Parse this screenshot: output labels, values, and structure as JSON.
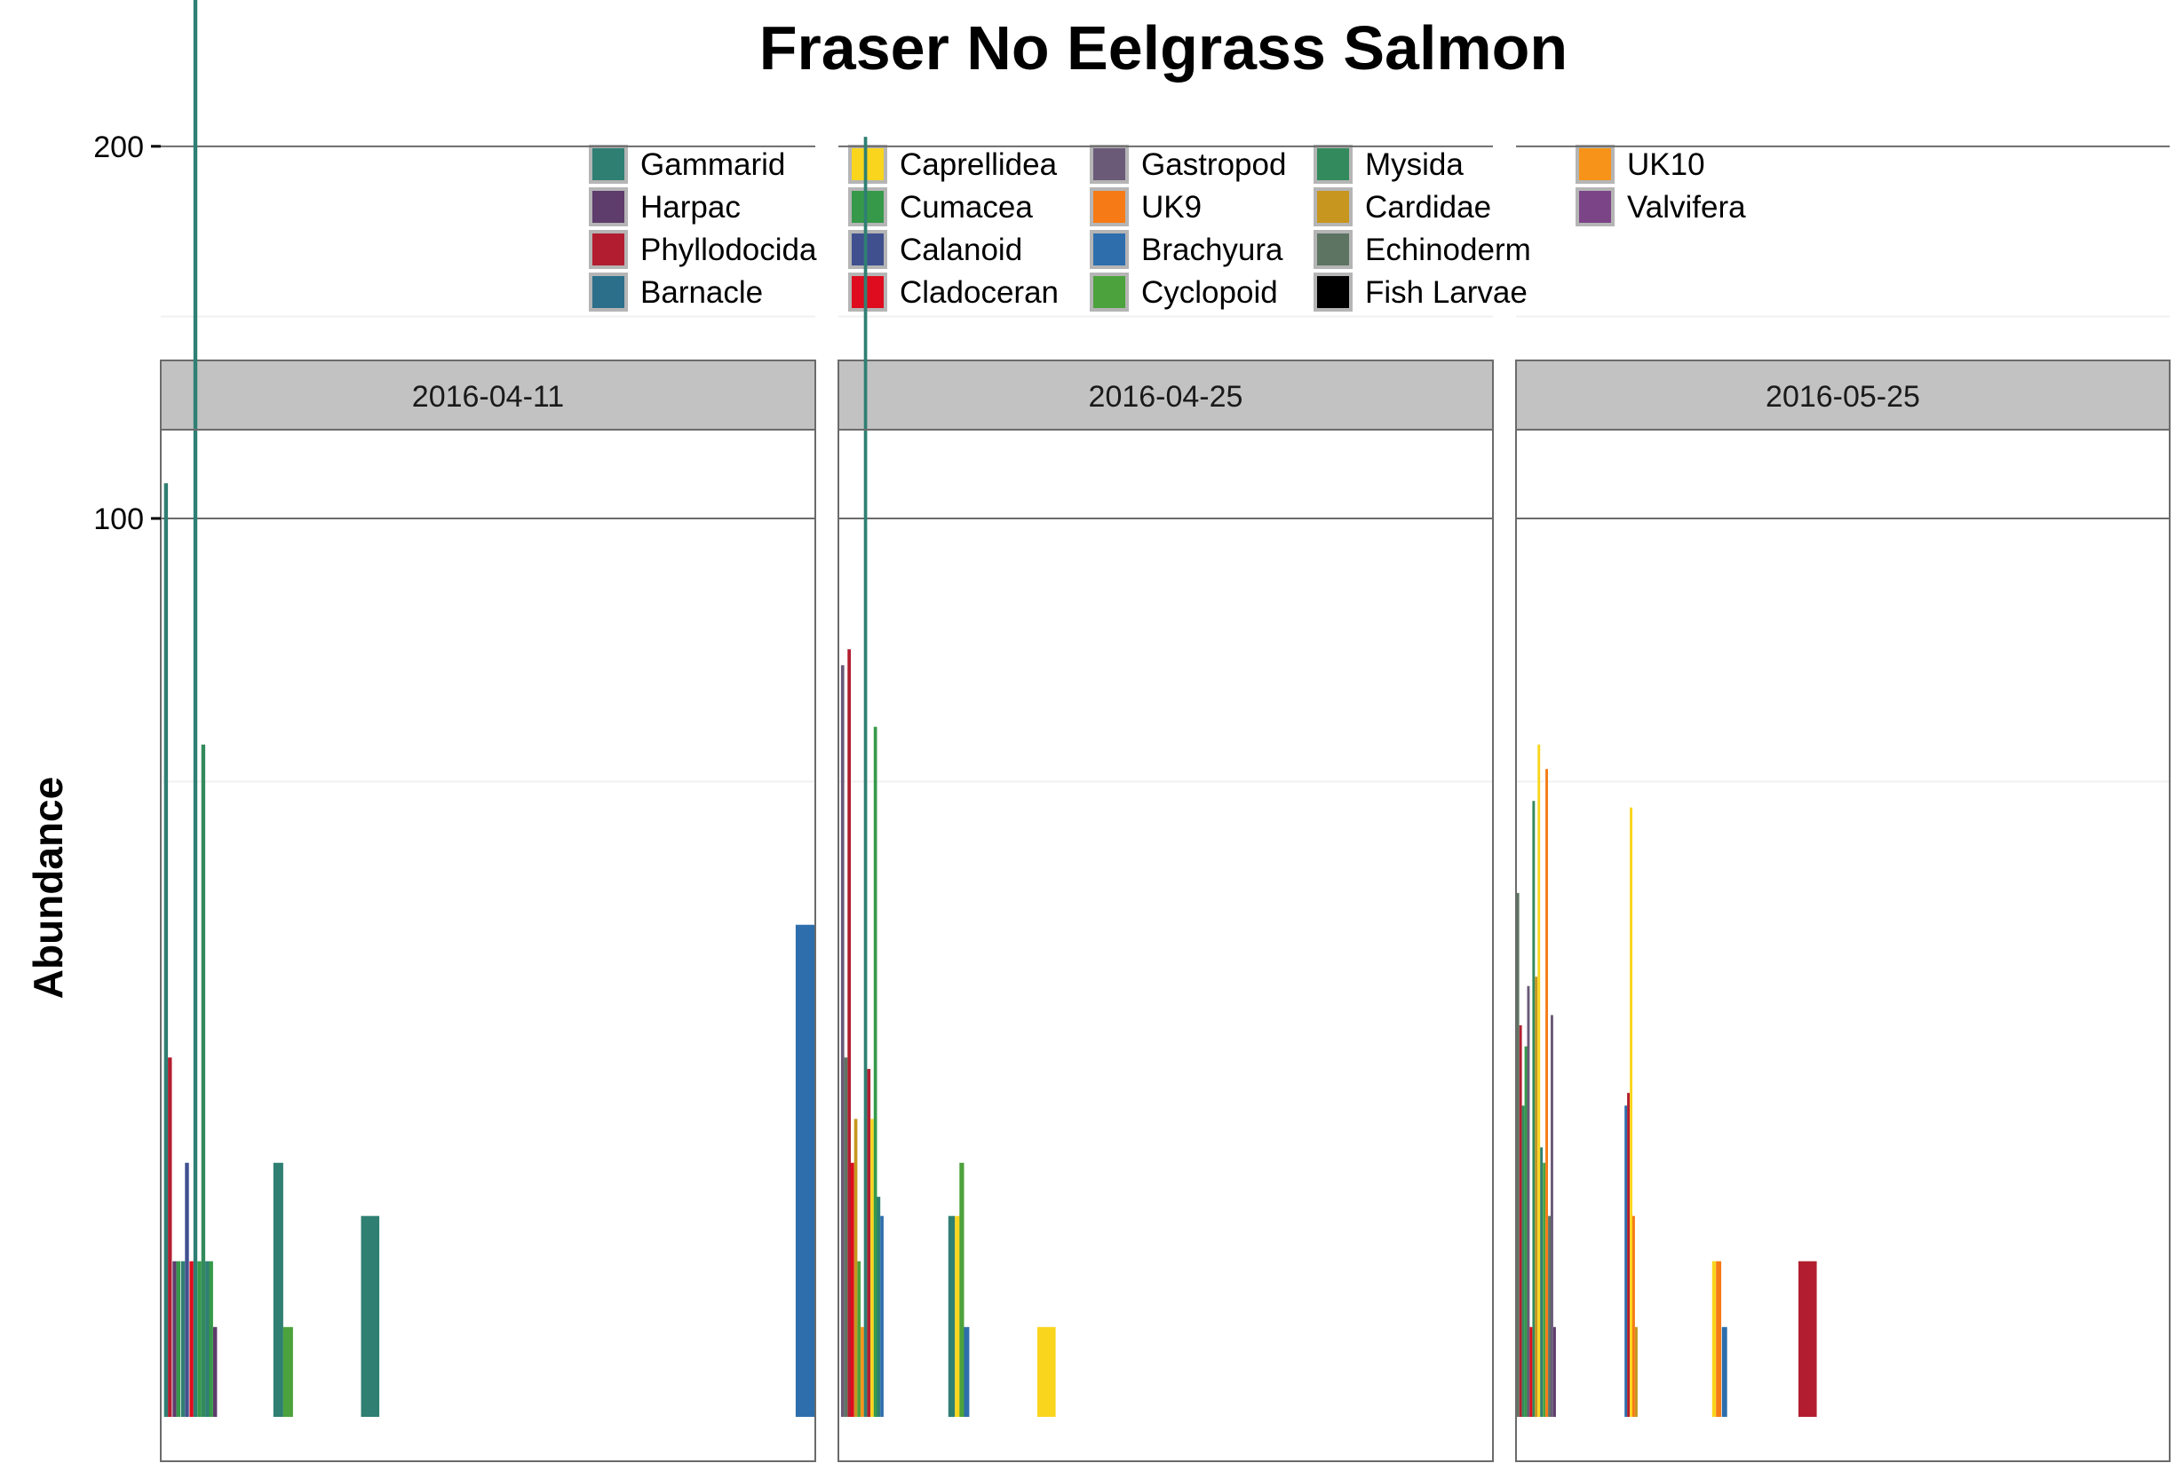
{
  "chart_data": {
    "type": "bar",
    "title": "Fraser No Eelgrass Salmon",
    "ylabel": "Abundance",
    "xlabel": "",
    "y_scale": "sqrt",
    "ylim": [
      0,
      300
    ],
    "yticks": [
      100,
      200,
      300
    ],
    "grid": true,
    "legend_position": "top",
    "legend": [
      {
        "name": "Gammarid",
        "color": "#2f7f73"
      },
      {
        "name": "Harpac",
        "color": "#5e3c6b"
      },
      {
        "name": "Phyllodocida",
        "color": "#b21e30"
      },
      {
        "name": "Barnacle",
        "color": "#2c6f8a"
      },
      {
        "name": "Caprellidea",
        "color": "#f9d51d"
      },
      {
        "name": "Cumacea",
        "color": "#36994a"
      },
      {
        "name": "Calanoid",
        "color": "#40508f"
      },
      {
        "name": "Cladoceran",
        "color": "#de0c1e"
      },
      {
        "name": "Gastropod",
        "color": "#6a5a78"
      },
      {
        "name": "UK9",
        "color": "#f67b16"
      },
      {
        "name": "Brachyura",
        "color": "#2e6ead"
      },
      {
        "name": "Cyclopoid",
        "color": "#4ca23c"
      },
      {
        "name": "Mysida",
        "color": "#338a5c"
      },
      {
        "name": "Cardidae",
        "color": "#c7961e"
      },
      {
        "name": "Echinoderm",
        "color": "#5d7463"
      },
      {
        "name": "Fish Larvae",
        "color": "#000000"
      },
      {
        "name": "UK10",
        "color": "#f79318"
      },
      {
        "name": "Valvifera",
        "color": "#7b4486"
      }
    ],
    "panels": [
      {
        "label": "2016-04-11",
        "x_max": 100,
        "bars": [
          {
            "x": 0.5,
            "w": 0.6,
            "taxon": "Gammarid",
            "value": 108
          },
          {
            "x": 1.1,
            "w": 0.6,
            "taxon": "Phyllodocida",
            "value": 16
          },
          {
            "x": 1.8,
            "w": 0.6,
            "taxon": "Harpac",
            "value": 3
          },
          {
            "x": 2.4,
            "w": 0.6,
            "taxon": "Cumacea",
            "value": 3
          },
          {
            "x": 3.1,
            "w": 0.6,
            "taxon": "Gammarid",
            "value": 3
          },
          {
            "x": 3.7,
            "w": 0.6,
            "taxon": "Calanoid",
            "value": 8
          },
          {
            "x": 4.4,
            "w": 0.6,
            "taxon": "Cladoceran",
            "value": 3
          },
          {
            "x": 5.0,
            "w": 0.6,
            "taxon": "Gammarid",
            "value": 283
          },
          {
            "x": 5.6,
            "w": 0.6,
            "taxon": "Cumacea",
            "value": 3
          },
          {
            "x": 6.2,
            "w": 0.6,
            "taxon": "Mysida",
            "value": 56
          },
          {
            "x": 6.8,
            "w": 0.6,
            "taxon": "Gammarid",
            "value": 3
          },
          {
            "x": 7.4,
            "w": 0.6,
            "taxon": "Cumacea",
            "value": 3
          },
          {
            "x": 8.0,
            "w": 0.6,
            "taxon": "Harpac",
            "value": 1
          },
          {
            "x": 17.2,
            "w": 1.5,
            "taxon": "Gammarid",
            "value": 8
          },
          {
            "x": 18.7,
            "w": 1.5,
            "taxon": "Cyclopoid",
            "value": 1
          },
          {
            "x": 30.6,
            "w": 2.8,
            "taxon": "Gammarid",
            "value": 5
          },
          {
            "x": 97.0,
            "w": 3.0,
            "taxon": "Brachyura",
            "value": 30
          }
        ]
      },
      {
        "label": "2016-04-25",
        "x_max": 100,
        "bars": [
          {
            "x": 0.4,
            "w": 0.5,
            "taxon": "Gastropod",
            "value": 70
          },
          {
            "x": 0.9,
            "w": 0.5,
            "taxon": "Echinoderm",
            "value": 16
          },
          {
            "x": 1.4,
            "w": 0.5,
            "taxon": "Phyllodocida",
            "value": 73
          },
          {
            "x": 1.9,
            "w": 0.5,
            "taxon": "Cladoceran",
            "value": 8
          },
          {
            "x": 2.4,
            "w": 0.5,
            "taxon": "Cardidae",
            "value": 11
          },
          {
            "x": 2.9,
            "w": 0.5,
            "taxon": "Cyclopoid",
            "value": 3
          },
          {
            "x": 3.4,
            "w": 0.5,
            "taxon": "UK10",
            "value": 1
          },
          {
            "x": 3.9,
            "w": 0.5,
            "taxon": "Gammarid",
            "value": 203
          },
          {
            "x": 4.4,
            "w": 0.5,
            "taxon": "Phyllodocida",
            "value": 15
          },
          {
            "x": 4.9,
            "w": 0.5,
            "taxon": "Caprellidea",
            "value": 11
          },
          {
            "x": 5.4,
            "w": 0.5,
            "taxon": "Cumacea",
            "value": 59
          },
          {
            "x": 5.9,
            "w": 0.5,
            "taxon": "Gammarid",
            "value": 6
          },
          {
            "x": 6.4,
            "w": 0.5,
            "taxon": "Brachyura",
            "value": 5
          },
          {
            "x": 16.8,
            "w": 1.0,
            "taxon": "Gammarid",
            "value": 5
          },
          {
            "x": 17.8,
            "w": 0.7,
            "taxon": "Caprellidea",
            "value": 5
          },
          {
            "x": 18.5,
            "w": 0.7,
            "taxon": "Cyclopoid",
            "value": 8
          },
          {
            "x": 19.2,
            "w": 0.8,
            "taxon": "Brachyura",
            "value": 1
          },
          {
            "x": 30.4,
            "w": 2.8,
            "taxon": "Caprellidea",
            "value": 1
          }
        ]
      },
      {
        "label": "2016-05-25",
        "x_max": 100,
        "bars": [
          {
            "x": 0.1,
            "w": 0.4,
            "taxon": "Echinoderm",
            "value": 34
          },
          {
            "x": 0.5,
            "w": 0.4,
            "taxon": "Phyllodocida",
            "value": 19
          },
          {
            "x": 0.9,
            "w": 0.4,
            "taxon": "Mysida",
            "value": 12
          },
          {
            "x": 1.3,
            "w": 0.4,
            "taxon": "Cumacea",
            "value": 17
          },
          {
            "x": 1.7,
            "w": 0.4,
            "taxon": "Gastropod",
            "value": 23
          },
          {
            "x": 2.1,
            "w": 0.4,
            "taxon": "Cladoceran",
            "value": 1
          },
          {
            "x": 2.5,
            "w": 0.4,
            "taxon": "Mysida",
            "value": 47
          },
          {
            "x": 2.9,
            "w": 0.4,
            "taxon": "Cardidae",
            "value": 24
          },
          {
            "x": 3.3,
            "w": 0.4,
            "taxon": "Caprellidea",
            "value": 56
          },
          {
            "x": 3.7,
            "w": 0.4,
            "taxon": "Gammarid",
            "value": 9
          },
          {
            "x": 4.1,
            "w": 0.4,
            "taxon": "Cyclopoid",
            "value": 8
          },
          {
            "x": 4.5,
            "w": 0.4,
            "taxon": "UK9",
            "value": 52
          },
          {
            "x": 4.9,
            "w": 0.4,
            "taxon": "Echinoderm",
            "value": 5
          },
          {
            "x": 5.3,
            "w": 0.4,
            "taxon": "Gastropod",
            "value": 20
          },
          {
            "x": 5.7,
            "w": 0.4,
            "taxon": "Harpac",
            "value": 1
          },
          {
            "x": 16.6,
            "w": 0.4,
            "taxon": "Brachyura",
            "value": 12
          },
          {
            "x": 17.0,
            "w": 0.4,
            "taxon": "Phyllodocida",
            "value": 13
          },
          {
            "x": 17.4,
            "w": 0.4,
            "taxon": "Caprellidea",
            "value": 46
          },
          {
            "x": 17.8,
            "w": 0.4,
            "taxon": "UK9",
            "value": 5
          },
          {
            "x": 18.2,
            "w": 0.4,
            "taxon": "Cardidae",
            "value": 1
          },
          {
            "x": 30.0,
            "w": 0.6,
            "taxon": "Caprellidea",
            "value": 3
          },
          {
            "x": 30.6,
            "w": 0.8,
            "taxon": "UK9",
            "value": 3
          },
          {
            "x": 31.5,
            "w": 0.8,
            "taxon": "Brachyura",
            "value": 1
          },
          {
            "x": 43.2,
            "w": 2.8,
            "taxon": "Phyllodocida",
            "value": 3
          }
        ]
      }
    ]
  }
}
